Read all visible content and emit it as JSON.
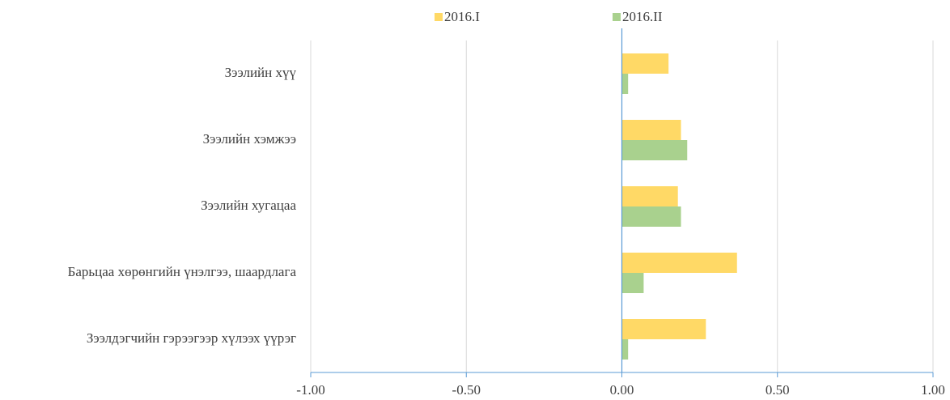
{
  "chart_data": {
    "type": "hbar",
    "categories": [
      "Зээлийн хүү",
      "Зээлийн хэмжээ",
      "Зээлийн хугацаа",
      "Барьцаа хөрөнгийн үнэлгээ, шаардлага",
      "Зээлдэгчийн гэрээгээр хүлээх үүрэг"
    ],
    "series": [
      {
        "name": "2016.I",
        "color": "#ffd966",
        "values": [
          0.15,
          0.19,
          0.18,
          0.37,
          0.27
        ]
      },
      {
        "name": "2016.II",
        "color": "#a9d18e",
        "values": [
          0.02,
          0.21,
          0.19,
          0.07,
          0.02
        ]
      }
    ],
    "xlim": [
      -1,
      1
    ],
    "xticks": [
      {
        "value": -1,
        "label": "-1.00"
      },
      {
        "value": -0.5,
        "label": "-0.50"
      },
      {
        "value": 0,
        "label": "0.00"
      },
      {
        "value": 0.5,
        "label": "0.50"
      },
      {
        "value": 1,
        "label": "1.00"
      }
    ],
    "grid": true,
    "legend": "top"
  }
}
